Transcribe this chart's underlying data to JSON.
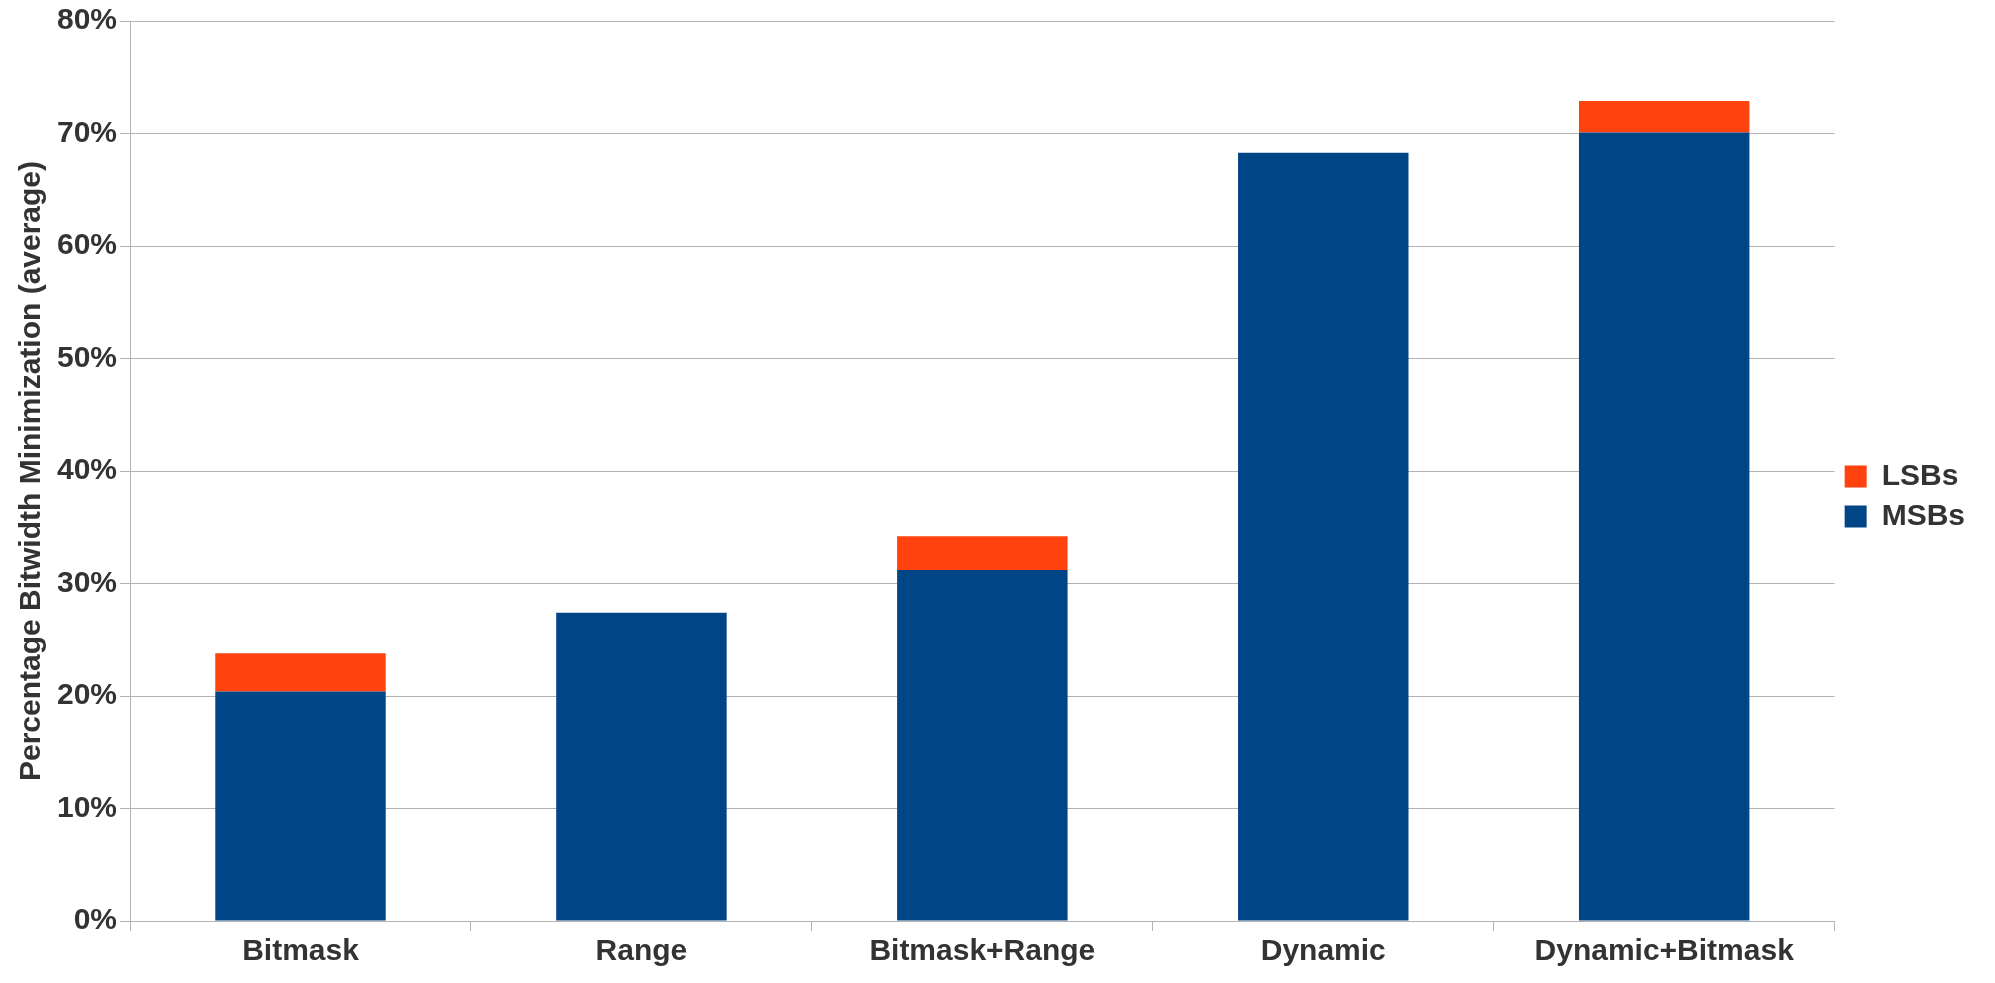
{
  "chart_data": {
    "type": "bar",
    "ylabel": "Percentage Bitwidth Minimization (average)",
    "categories": [
      "Bitmask",
      "Range",
      "Bitmask+Range",
      "Dynamic",
      "Dynamic+Bitmask"
    ],
    "series": [
      {
        "name": "MSBs",
        "color": "#004586",
        "values": [
          20.4,
          27.4,
          31.2,
          68.3,
          70.1
        ]
      },
      {
        "name": "LSBs",
        "color": "#ff420e",
        "values": [
          3.4,
          null,
          3.0,
          null,
          2.8
        ]
      }
    ],
    "stacked": true,
    "ylim": [
      0,
      80
    ],
    "yticks": [
      {
        "value": 0,
        "label": "0%"
      },
      {
        "value": 10,
        "label": "10%"
      },
      {
        "value": 20,
        "label": "20%"
      },
      {
        "value": 30,
        "label": "30%"
      },
      {
        "value": 40,
        "label": "40%"
      },
      {
        "value": 50,
        "label": "50%"
      },
      {
        "value": 60,
        "label": "60%"
      },
      {
        "value": 70,
        "label": "70%"
      },
      {
        "value": 80,
        "label": "80%"
      }
    ],
    "grid": "y",
    "legend": "right"
  }
}
